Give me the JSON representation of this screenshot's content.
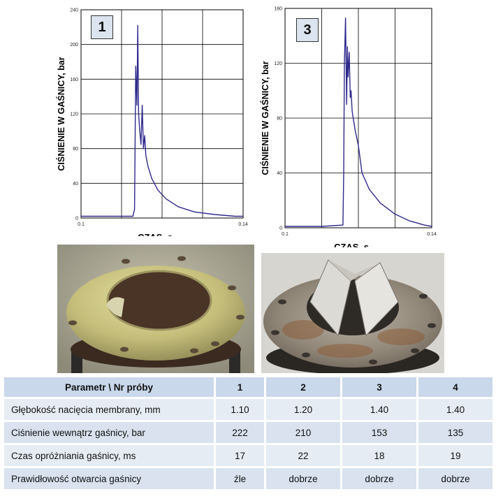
{
  "chart_data": [
    {
      "type": "line",
      "panel_label": "1",
      "xlabel": "CZAS, s",
      "ylabel": "CIŚNIENIE W GAŚNICY, bar",
      "xlim": [
        0.1,
        0.14
      ],
      "ylim": [
        0,
        240
      ],
      "x_ticks": [
        "0.1",
        "0.14"
      ],
      "y_ticks": [
        "0",
        "40",
        "80",
        "120",
        "160",
        "200",
        "240"
      ],
      "grid": true,
      "line_color": "#2e2a8c",
      "x": [
        0.1,
        0.108,
        0.1128,
        0.1132,
        0.1135,
        0.1138,
        0.114,
        0.1142,
        0.1145,
        0.1148,
        0.1151,
        0.1154,
        0.1157,
        0.116,
        0.1165,
        0.1175,
        0.119,
        0.121,
        0.124,
        0.128,
        0.133,
        0.138,
        0.14
      ],
      "values": [
        2,
        2,
        2,
        10,
        175,
        130,
        222,
        120,
        100,
        85,
        130,
        80,
        95,
        72,
        60,
        45,
        32,
        22,
        13,
        7,
        4,
        2,
        2
      ]
    },
    {
      "type": "line",
      "panel_label": "3",
      "xlabel": "CZAS, s",
      "ylabel": "CIŚNIENIE W GAŚNICY, bar",
      "xlim": [
        0.1,
        0.14
      ],
      "ylim": [
        0,
        160
      ],
      "x_ticks": [
        "0.1",
        "0.14"
      ],
      "y_ticks": [
        "0",
        "40",
        "80",
        "120",
        "160"
      ],
      "grid": true,
      "line_color": "#2e2a8c",
      "x": [
        0.1,
        0.11,
        0.1158,
        0.116,
        0.1162,
        0.1165,
        0.1168,
        0.117,
        0.1172,
        0.1175,
        0.1178,
        0.118,
        0.1183,
        0.1187,
        0.1192,
        0.12,
        0.121,
        0.123,
        0.126,
        0.13,
        0.134,
        0.138,
        0.14
      ],
      "values": [
        1,
        1,
        2,
        40,
        120,
        153,
        90,
        132,
        110,
        128,
        95,
        100,
        85,
        78,
        70,
        60,
        40,
        28,
        18,
        10,
        5,
        2,
        1
      ]
    }
  ],
  "table": {
    "header": [
      "Parametr \\ Nr próby",
      "1",
      "2",
      "3",
      "4"
    ],
    "rows": [
      {
        "label": "Głębokość nacięcia membrany,  mm",
        "values": [
          "1.10",
          "1.20",
          "1.40",
          "1.40"
        ]
      },
      {
        "label": "Ciśnienie wewnątrz gaśnicy,  bar",
        "values": [
          "222",
          "210",
          "153",
          "135"
        ]
      },
      {
        "label": "Czas opróżniania gaśnicy,  ms",
        "values": [
          "17",
          "22",
          "18",
          "19"
        ]
      },
      {
        "label": "Prawidłowość otwarcia gaśnicy",
        "values": [
          "źle",
          "dobrze",
          "dobrze",
          "dobrze"
        ]
      }
    ]
  }
}
